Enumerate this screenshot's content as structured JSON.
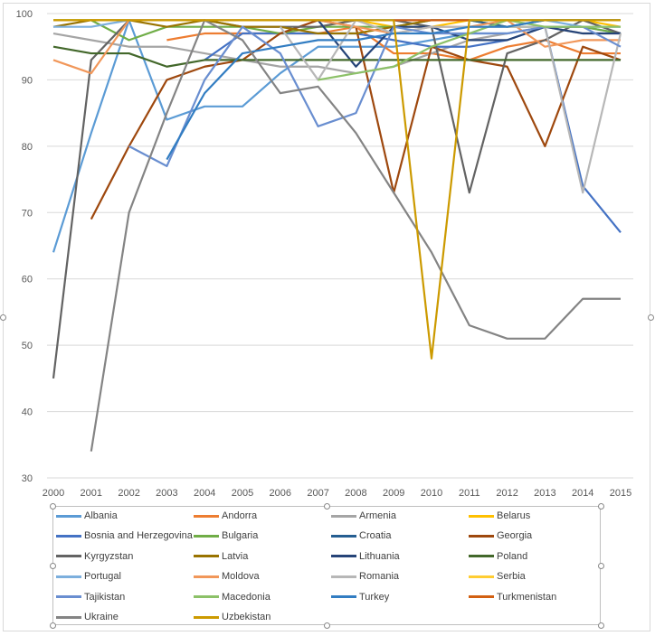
{
  "chart_data": {
    "type": "line",
    "title": "",
    "xlabel": "",
    "ylabel": "",
    "ylim": [
      30,
      100
    ],
    "yticks": [
      30,
      40,
      50,
      60,
      70,
      80,
      90,
      100
    ],
    "x": [
      "2000",
      "2001",
      "2002",
      "2003",
      "2004",
      "2005",
      "2006",
      "2007",
      "2008",
      "2009",
      "2010",
      "2011",
      "2012",
      "2013",
      "2014",
      "2015"
    ],
    "grid": true,
    "legend_position": "bottom",
    "series": [
      {
        "name": "Albania",
        "color": "#5B9BD5",
        "values": [
          64,
          82,
          99,
          84,
          86,
          86,
          91,
          95,
          95,
          95,
          96,
          97,
          97,
          98,
          98,
          97
        ]
      },
      {
        "name": "Andorra",
        "color": "#ED7D31",
        "values": [
          null,
          null,
          null,
          96,
          97,
          97,
          97,
          97,
          98,
          94,
          94,
          93,
          95,
          96,
          94,
          94
        ]
      },
      {
        "name": "Armenia",
        "color": "#A5A5A5",
        "values": [
          97,
          96,
          95,
          95,
          94,
          93,
          92,
          92,
          91,
          92,
          94,
          96,
          97,
          98,
          97,
          97
        ]
      },
      {
        "name": "Belarus",
        "color": "#FFC000",
        "values": [
          99,
          99,
          99,
          99,
          99,
          99,
          99,
          99,
          99,
          98,
          98,
          99,
          99,
          99,
          99,
          98
        ]
      },
      {
        "name": "Bosnia and Herzegovina",
        "color": "#4472C4",
        "values": [
          null,
          null,
          null,
          null,
          93,
          97,
          97,
          97,
          97,
          96,
          95,
          95,
          96,
          98,
          74,
          67
        ]
      },
      {
        "name": "Bulgaria",
        "color": "#70AD47",
        "values": [
          99,
          99,
          96,
          98,
          98,
          98,
          97,
          98,
          98,
          98,
          99,
          99,
          98,
          98,
          98,
          97
        ]
      },
      {
        "name": "Croatia",
        "color": "#255E91",
        "values": [
          null,
          null,
          null,
          null,
          null,
          null,
          null,
          null,
          null,
          null,
          null,
          99,
          98,
          99,
          99,
          99
        ]
      },
      {
        "name": "Georgia",
        "color": "#9E480E",
        "values": [
          null,
          69,
          80,
          90,
          92,
          93,
          97,
          99,
          98,
          73,
          95,
          93,
          92,
          80,
          95,
          93
        ]
      },
      {
        "name": "Kyrgyzstan",
        "color": "#636363",
        "values": [
          45,
          93,
          99,
          99,
          99,
          98,
          98,
          98,
          99,
          99,
          98,
          73,
          94,
          96,
          99,
          97
        ]
      },
      {
        "name": "Latvia",
        "color": "#997300",
        "values": [
          98,
          99,
          99,
          98,
          99,
          98,
          98,
          97,
          97,
          98,
          99,
          99,
          99,
          99,
          99,
          99
        ]
      },
      {
        "name": "Lithuania",
        "color": "#264478",
        "values": [
          null,
          null,
          null,
          null,
          null,
          null,
          null,
          99,
          92,
          98,
          98,
          96,
          96,
          98,
          97,
          97
        ]
      },
      {
        "name": "Poland",
        "color": "#43682B",
        "values": [
          95,
          94,
          94,
          92,
          93,
          93,
          93,
          93,
          93,
          93,
          93,
          93,
          93,
          93,
          93,
          93
        ]
      },
      {
        "name": "Portugal",
        "color": "#7CAFDD",
        "values": [
          98,
          98,
          99,
          99,
          99,
          99,
          99,
          99,
          99,
          99,
          99,
          99,
          99,
          99,
          98,
          98
        ]
      },
      {
        "name": "Moldova",
        "color": "#F1975A",
        "values": [
          93,
          91,
          99,
          99,
          99,
          99,
          99,
          99,
          98,
          97,
          98,
          98,
          99,
          95,
          96,
          96
        ]
      },
      {
        "name": "Romania",
        "color": "#B7B7B7",
        "values": [
          null,
          null,
          null,
          null,
          null,
          null,
          98,
          90,
          99,
          97,
          98,
          98,
          98,
          98,
          73,
          97
        ]
      },
      {
        "name": "Serbia",
        "color": "#FFCD33",
        "values": [
          null,
          null,
          null,
          null,
          null,
          null,
          null,
          null,
          null,
          null,
          null,
          null,
          null,
          99,
          99,
          99
        ]
      },
      {
        "name": "Tajikistan",
        "color": "#698ED0",
        "values": [
          null,
          null,
          80,
          77,
          90,
          98,
          94,
          83,
          85,
          98,
          97,
          97,
          97,
          98,
          98,
          95
        ]
      },
      {
        "name": "Macedonia",
        "color": "#8CC168",
        "values": [
          null,
          null,
          null,
          null,
          null,
          null,
          null,
          90,
          91,
          92,
          95,
          97,
          99,
          98,
          98,
          98
        ]
      },
      {
        "name": "Turkey",
        "color": "#327DC2",
        "values": [
          null,
          null,
          null,
          78,
          88,
          94,
          95,
          96,
          96,
          97,
          97,
          98,
          98,
          99,
          99,
          99
        ]
      },
      {
        "name": "Turkmenistan",
        "color": "#D26012",
        "values": [
          null,
          null,
          null,
          null,
          null,
          null,
          null,
          null,
          null,
          99,
          99,
          99,
          null,
          null,
          null,
          null
        ]
      },
      {
        "name": "Ukraine",
        "color": "#848484",
        "values": [
          null,
          34,
          70,
          85,
          99,
          96,
          88,
          89,
          82,
          73,
          64,
          53,
          51,
          51,
          57,
          57
        ]
      },
      {
        "name": "Uzbekistan",
        "color": "#CC9A00",
        "values": [
          99,
          99,
          99,
          99,
          99,
          99,
          99,
          99,
          99,
          99,
          48,
          99,
          99,
          99,
          99,
          99
        ]
      }
    ]
  }
}
